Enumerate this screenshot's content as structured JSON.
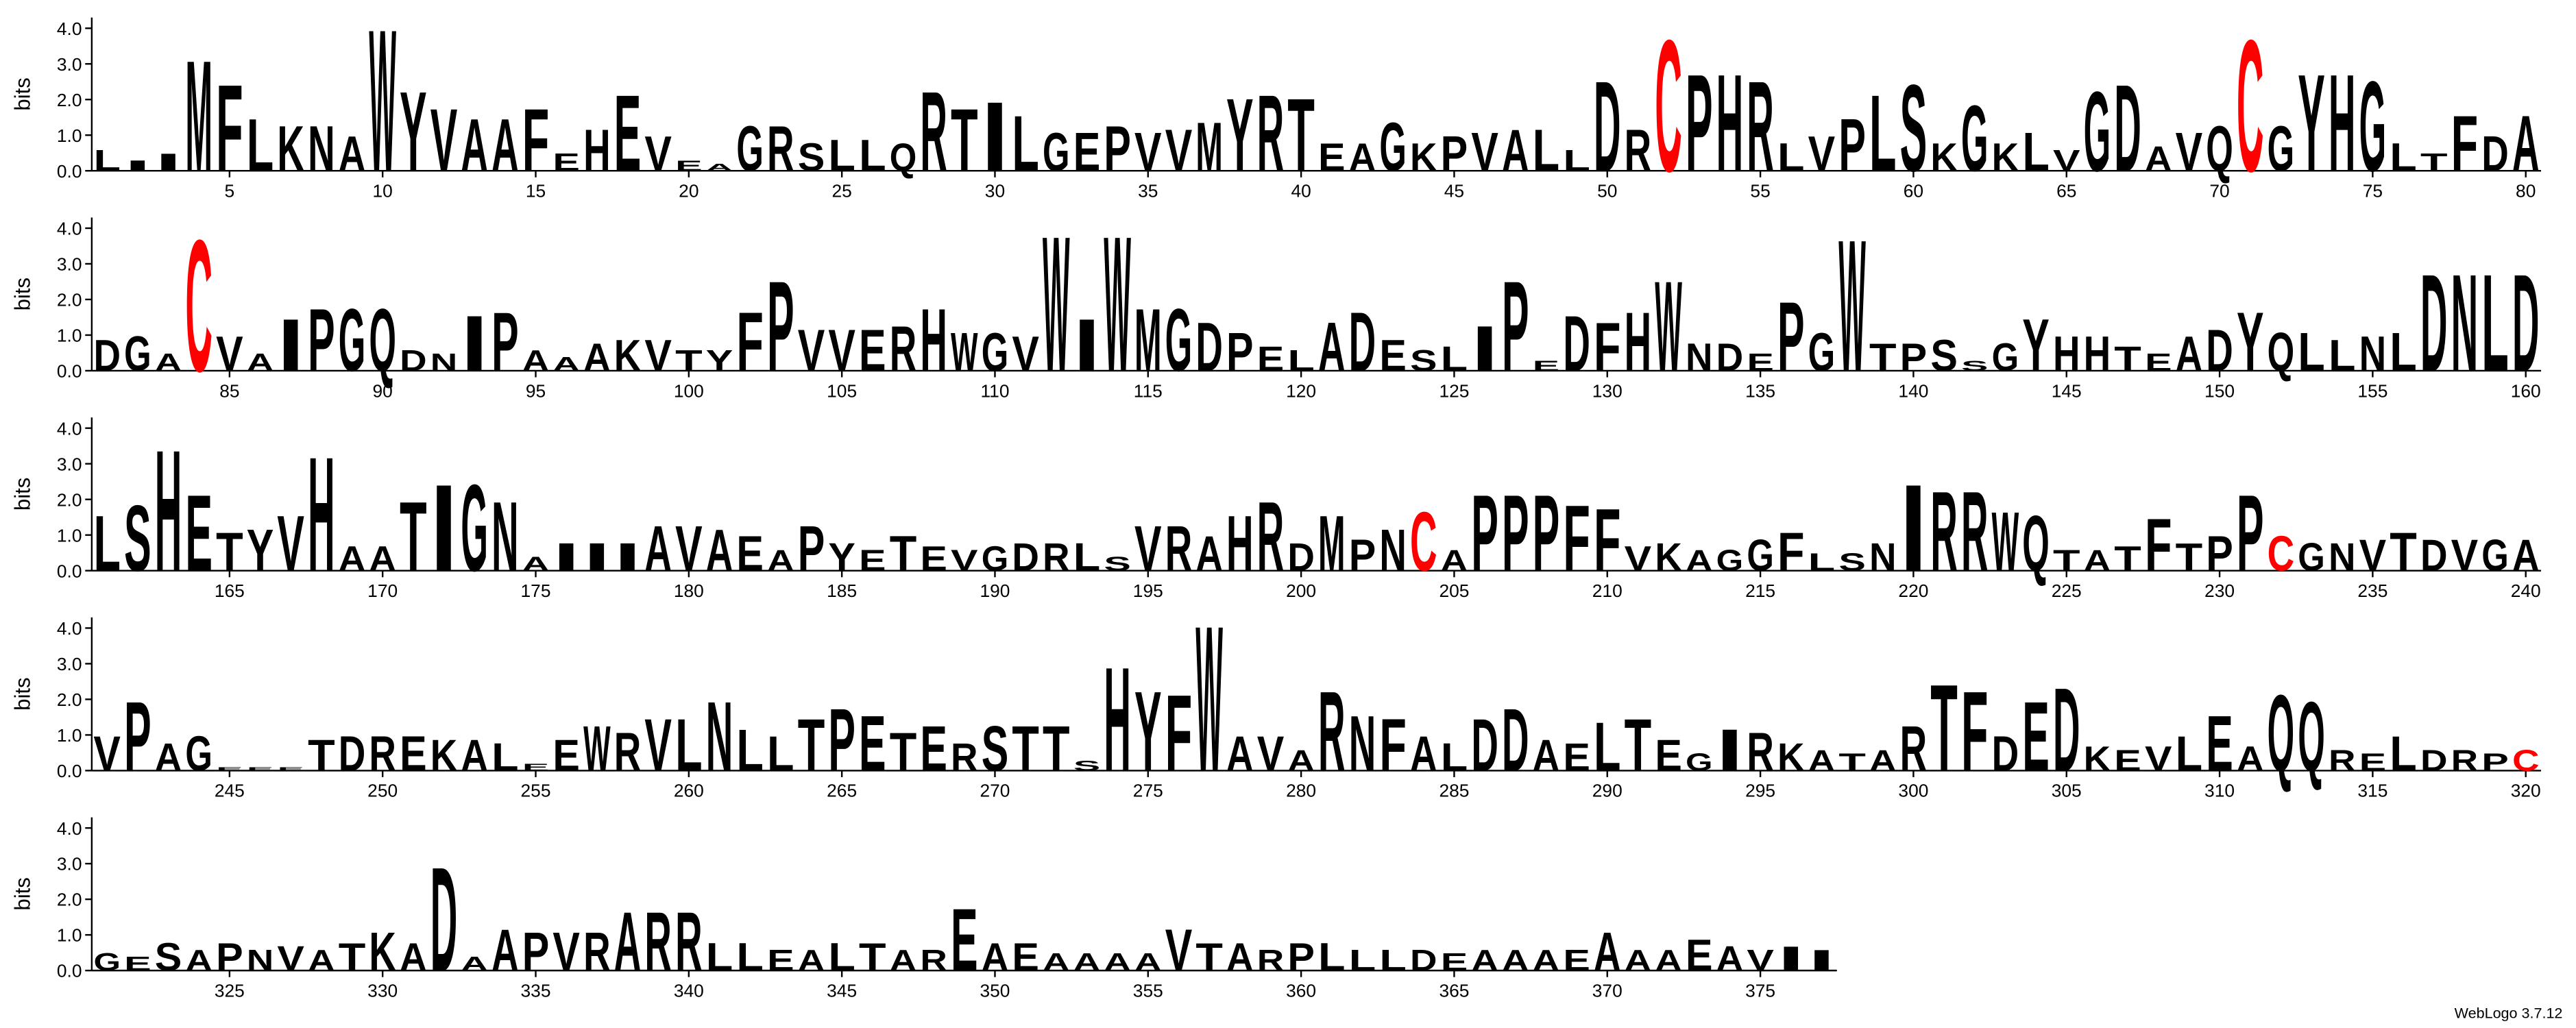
{
  "chart_data": [
    {
      "type": "logo",
      "ylabel": "bits",
      "ylim": [
        0,
        4.3
      ],
      "yticks": [
        {
          "value": 0,
          "label": "0.0"
        },
        {
          "value": 1,
          "label": "1.0"
        },
        {
          "value": 2,
          "label": "2.0"
        },
        {
          "value": 3,
          "label": "3.0"
        },
        {
          "value": 4,
          "label": "4.0"
        }
      ],
      "xlim": [
        0.5,
        80.5
      ],
      "xticks": [
        5,
        10,
        15,
        20,
        25,
        30,
        35,
        40,
        45,
        50,
        55,
        60,
        65,
        70,
        75,
        80
      ],
      "color": "#000000",
      "letter_colors": {
        "C": "#ff0000"
      },
      "x": [
        1,
        2,
        3,
        4,
        5,
        6,
        7,
        8,
        9,
        10,
        11,
        12,
        13,
        14,
        15,
        16,
        17,
        18,
        19,
        20,
        21,
        22,
        23,
        24,
        25,
        26,
        27,
        28,
        29,
        30,
        31,
        32,
        33,
        34,
        35,
        36,
        37,
        38,
        39,
        40,
        41,
        42,
        43,
        44,
        45,
        46,
        47,
        48,
        49,
        50,
        51,
        52,
        53,
        54,
        55,
        56,
        57,
        58,
        59,
        60,
        61,
        62,
        63,
        64,
        65,
        66,
        67,
        68,
        69,
        70,
        71,
        72,
        73,
        74,
        75,
        76,
        77,
        78,
        79,
        80
      ],
      "letters": [
        "L",
        "I",
        "I",
        "M",
        "F",
        "L",
        "K",
        "N",
        "A",
        "W",
        "Y",
        "V",
        "A",
        "A",
        "F",
        "E",
        "H",
        "E",
        "V",
        "E",
        "A",
        "G",
        "R",
        "S",
        "L",
        "L",
        "Q",
        "R",
        "T",
        "I",
        "L",
        "G",
        "E",
        "P",
        "V",
        "V",
        "M",
        "Y",
        "R",
        "T",
        "E",
        "A",
        "G",
        "K",
        "P",
        "V",
        "A",
        "L",
        "L",
        "D",
        "R",
        "C",
        "P",
        "H",
        "R",
        "L",
        "V",
        "P",
        "L",
        "S",
        "K",
        "G",
        "K",
        "L",
        "V",
        "G",
        "D",
        "A",
        "V",
        "Q",
        "C",
        "G",
        "Y",
        "H",
        "G",
        "L",
        "T",
        "F",
        "D",
        "A"
      ],
      "values": [
        0.6,
        0.3,
        0.5,
        3.2,
        2.5,
        1.5,
        1.3,
        1.3,
        1.0,
        4.1,
        2.3,
        1.8,
        1.5,
        1.5,
        1.8,
        0.5,
        1.2,
        2.2,
        1.0,
        0.3,
        0.2,
        1.3,
        1.3,
        0.8,
        0.9,
        0.9,
        0.8,
        2.3,
        1.8,
        2.0,
        1.6,
        1.1,
        1.1,
        1.3,
        1.1,
        1.2,
        1.4,
        2.1,
        2.2,
        2.1,
        0.8,
        0.8,
        1.4,
        0.8,
        1.0,
        1.1,
        1.2,
        1.2,
        0.6,
        2.6,
        1.2,
        3.8,
        2.8,
        2.8,
        2.6,
        0.8,
        1.0,
        1.5,
        2.2,
        2.5,
        0.8,
        1.9,
        0.8,
        1.1,
        0.6,
        2.3,
        2.5,
        0.7,
        1.1,
        1.3,
        3.8,
        1.3,
        2.8,
        2.8,
        2.6,
        0.8,
        0.5,
        1.6,
        1.0,
        1.6
      ]
    },
    {
      "type": "logo",
      "ylabel": "bits",
      "ylim": [
        0,
        4.3
      ],
      "yticks": [
        {
          "value": 0,
          "label": "0.0"
        },
        {
          "value": 1,
          "label": "1.0"
        },
        {
          "value": 2,
          "label": "2.0"
        },
        {
          "value": 3,
          "label": "3.0"
        },
        {
          "value": 4,
          "label": "4.0"
        }
      ],
      "xlim": [
        80.5,
        160.5
      ],
      "xticks": [
        85,
        90,
        95,
        100,
        105,
        110,
        115,
        120,
        125,
        130,
        135,
        140,
        145,
        150,
        155,
        160
      ],
      "color": "#000000",
      "letter_colors": {
        "C": "#ff0000"
      },
      "x": [
        81,
        82,
        83,
        84,
        85,
        86,
        87,
        88,
        89,
        90,
        91,
        92,
        93,
        94,
        95,
        96,
        97,
        98,
        99,
        100,
        101,
        102,
        103,
        104,
        105,
        106,
        107,
        108,
        109,
        110,
        111,
        112,
        113,
        114,
        115,
        116,
        117,
        118,
        119,
        120,
        121,
        122,
        123,
        124,
        125,
        126,
        127,
        128,
        129,
        130,
        131,
        132,
        133,
        134,
        135,
        136,
        137,
        138,
        139,
        140,
        141,
        142,
        143,
        144,
        145,
        146,
        147,
        148,
        149,
        150,
        151,
        152,
        153,
        154,
        155,
        156,
        157,
        158,
        159,
        160
      ],
      "letters": [
        "D",
        "G",
        "A",
        "C",
        "V",
        "A",
        "I",
        "P",
        "G",
        "Q",
        "D",
        "N",
        "I",
        "P",
        "A",
        "A",
        "A",
        "K",
        "V",
        "T",
        "Y",
        "F",
        "P",
        "V",
        "V",
        "E",
        "R",
        "H",
        "W",
        "G",
        "V",
        "W",
        "I",
        "W",
        "M",
        "G",
        "D",
        "P",
        "E",
        "L",
        "A",
        "D",
        "E",
        "S",
        "L",
        "I",
        "P",
        "E",
        "D",
        "F",
        "H",
        "W",
        "N",
        "D",
        "E",
        "P",
        "G",
        "W",
        "T",
        "P",
        "S",
        "S",
        "G",
        "Y",
        "H",
        "H",
        "T",
        "E",
        "A",
        "D",
        "Y",
        "Q",
        "L",
        "L",
        "N",
        "L",
        "D",
        "N",
        "L",
        "D"
      ],
      "values": [
        0.9,
        1.0,
        0.5,
        3.8,
        1.0,
        0.5,
        1.5,
        1.8,
        1.8,
        1.8,
        0.6,
        0.5,
        1.6,
        1.7,
        0.6,
        0.4,
        0.8,
        0.9,
        0.9,
        0.6,
        0.6,
        1.7,
        2.6,
        1.2,
        1.2,
        1.2,
        1.3,
        1.8,
        1.1,
        1.1,
        1.0,
        3.9,
        1.5,
        3.9,
        1.8,
        1.8,
        1.4,
        1.1,
        0.7,
        0.6,
        1.4,
        1.7,
        0.9,
        0.6,
        0.7,
        1.3,
        2.6,
        0.3,
        1.6,
        1.4,
        1.7,
        2.6,
        0.8,
        0.8,
        0.5,
        2.0,
        1.1,
        3.8,
        0.8,
        0.8,
        0.9,
        0.3,
        0.8,
        1.5,
        1.0,
        1.0,
        0.7,
        0.5,
        1.0,
        1.2,
        1.7,
        1.1,
        1.1,
        0.9,
        1.0,
        1.1,
        2.8,
        2.8,
        2.8,
        2.8
      ]
    },
    {
      "type": "logo",
      "ylabel": "bits",
      "ylim": [
        0,
        4.3
      ],
      "yticks": [
        {
          "value": 0,
          "label": "0.0"
        },
        {
          "value": 1,
          "label": "1.0"
        },
        {
          "value": 2,
          "label": "2.0"
        },
        {
          "value": 3,
          "label": "3.0"
        },
        {
          "value": 4,
          "label": "4.0"
        }
      ],
      "xlim": [
        160.5,
        240.5
      ],
      "xticks": [
        165,
        170,
        175,
        180,
        185,
        190,
        195,
        200,
        205,
        210,
        215,
        220,
        225,
        230,
        235,
        240
      ],
      "color": "#000000",
      "letter_colors": {
        "C": "#ff0000"
      },
      "x": [
        161,
        162,
        163,
        164,
        165,
        166,
        167,
        168,
        169,
        170,
        171,
        172,
        173,
        174,
        175,
        176,
        177,
        178,
        179,
        180,
        181,
        182,
        183,
        184,
        185,
        186,
        187,
        188,
        189,
        190,
        191,
        192,
        193,
        194,
        195,
        196,
        197,
        198,
        199,
        200,
        201,
        202,
        203,
        204,
        205,
        206,
        207,
        208,
        209,
        210,
        211,
        212,
        213,
        214,
        215,
        216,
        217,
        218,
        219,
        220,
        221,
        222,
        223,
        224,
        225,
        226,
        227,
        228,
        229,
        230,
        231,
        232,
        233,
        234,
        235,
        236,
        237,
        238,
        239,
        240
      ],
      "letters": [
        "L",
        "S",
        "H",
        "E",
        "T",
        "Y",
        "V",
        "H",
        "A",
        "A",
        "T",
        "I",
        "G",
        "N",
        "A",
        "I",
        "I",
        "I",
        "A",
        "V",
        "A",
        "E",
        "A",
        "P",
        "Y",
        "E",
        "T",
        "E",
        "V",
        "G",
        "D",
        "R",
        "L",
        "S",
        "V",
        "R",
        "A",
        "H",
        "R",
        "D",
        "M",
        "P",
        "N",
        "C",
        "A",
        "P",
        "P",
        "P",
        "F",
        "F",
        "V",
        "K",
        "A",
        "G",
        "G",
        "F",
        "L",
        "S",
        "N",
        "I",
        "R",
        "R",
        "W",
        "Q",
        "T",
        "A",
        "T",
        "F",
        "T",
        "P",
        "P",
        "C",
        "G",
        "N",
        "V",
        "T",
        "D",
        "V",
        "G",
        "A"
      ],
      "values": [
        1.6,
        1.9,
        3.5,
        2.2,
        1.1,
        1.2,
        1.6,
        3.3,
        0.7,
        0.7,
        2.0,
        2.5,
        2.5,
        2.0,
        0.4,
        0.8,
        0.8,
        0.8,
        1.3,
        1.3,
        1.2,
        1.0,
        0.6,
        1.3,
        0.8,
        0.6,
        1.0,
        0.7,
        0.6,
        0.7,
        0.8,
        0.8,
        0.8,
        0.4,
        1.3,
        1.3,
        1.0,
        1.6,
        2.0,
        0.8,
        1.6,
        0.9,
        1.2,
        1.7,
        0.6,
        2.2,
        2.2,
        2.2,
        1.9,
        1.8,
        0.7,
        0.8,
        0.6,
        0.6,
        0.9,
        1.1,
        0.5,
        0.5,
        0.8,
        2.5,
        2.3,
        2.3,
        1.7,
        1.6,
        0.6,
        0.6,
        0.7,
        1.5,
        0.8,
        1.0,
        2.2,
        1.0,
        0.8,
        0.8,
        0.9,
        1.1,
        0.9,
        0.9,
        0.9,
        0.9
      ]
    },
    {
      "type": "logo",
      "ylabel": "bits",
      "ylim": [
        0,
        4.3
      ],
      "yticks": [
        {
          "value": 0,
          "label": "0.0"
        },
        {
          "value": 1,
          "label": "1.0"
        },
        {
          "value": 2,
          "label": "2.0"
        },
        {
          "value": 3,
          "label": "3.0"
        },
        {
          "value": 4,
          "label": "4.0"
        }
      ],
      "xlim": [
        240.5,
        320.5
      ],
      "xticks": [
        245,
        250,
        255,
        260,
        265,
        270,
        275,
        280,
        285,
        290,
        295,
        300,
        305,
        310,
        315,
        320
      ],
      "color": "#000000",
      "letter_colors": {
        "C": "#ff0000"
      },
      "x": [
        241,
        242,
        243,
        244,
        245,
        246,
        247,
        248,
        249,
        250,
        251,
        252,
        253,
        254,
        255,
        256,
        257,
        258,
        259,
        260,
        261,
        262,
        263,
        264,
        265,
        266,
        267,
        268,
        269,
        270,
        271,
        272,
        273,
        274,
        275,
        276,
        277,
        278,
        279,
        280,
        281,
        282,
        283,
        284,
        285,
        286,
        287,
        288,
        289,
        290,
        291,
        292,
        293,
        294,
        295,
        296,
        297,
        298,
        299,
        300,
        301,
        302,
        303,
        304,
        305,
        306,
        307,
        308,
        309,
        310,
        311,
        312,
        313,
        314,
        315,
        316,
        317,
        318,
        319,
        320
      ],
      "letters": [
        "V",
        "P",
        "A",
        "G",
        "E",
        "E",
        "E",
        "T",
        "D",
        "R",
        "E",
        "K",
        "A",
        "L",
        "E",
        "E",
        "W",
        "R",
        "V",
        "L",
        "N",
        "L",
        "L",
        "T",
        "P",
        "E",
        "T",
        "E",
        "R",
        "S",
        "T",
        "T",
        "S",
        "H",
        "Y",
        "F",
        "W",
        "A",
        "V",
        "A",
        "R",
        "N",
        "F",
        "A",
        "L",
        "D",
        "D",
        "A",
        "E",
        "L",
        "T",
        "E",
        "G",
        "I",
        "R",
        "K",
        "A",
        "T",
        "A",
        "R",
        "T",
        "F",
        "D",
        "E",
        "D",
        "K",
        "E",
        "V",
        "L",
        "E",
        "A",
        "Q",
        "Q",
        "R",
        "E",
        "L",
        "D",
        "R",
        "P",
        "C"
      ],
      "values": [
        1.0,
        2.0,
        0.8,
        1.0,
        0.1,
        0.1,
        0.1,
        0.9,
        1.0,
        1.0,
        1.0,
        0.9,
        0.9,
        0.8,
        0.2,
        0.9,
        1.3,
        1.1,
        1.5,
        1.5,
        2.0,
        1.2,
        1.0,
        1.5,
        1.8,
        1.6,
        1.1,
        1.3,
        0.8,
        1.3,
        1.3,
        1.3,
        0.3,
        3.0,
        2.3,
        2.2,
        4.2,
        1.0,
        1.0,
        0.6,
        2.3,
        1.6,
        1.5,
        1.0,
        0.8,
        1.5,
        1.8,
        0.9,
        0.8,
        1.4,
        1.5,
        0.9,
        0.5,
        1.2,
        1.1,
        0.8,
        0.6,
        0.5,
        0.6,
        1.3,
        2.5,
        2.3,
        1.0,
        2.0,
        2.4,
        0.7,
        0.6,
        0.7,
        1.0,
        1.6,
        0.7,
        2.2,
        2.0,
        0.6,
        0.5,
        1.0,
        0.6,
        0.6,
        0.5,
        0.6
      ]
    },
    {
      "type": "logo",
      "ylabel": "bits",
      "ylim": [
        0,
        4.3
      ],
      "yticks": [
        {
          "value": 0,
          "label": "0.0"
        },
        {
          "value": 1,
          "label": "1.0"
        },
        {
          "value": 2,
          "label": "2.0"
        },
        {
          "value": 3,
          "label": "3.0"
        },
        {
          "value": 4,
          "label": "4.0"
        }
      ],
      "xlim": [
        320.5,
        377.5
      ],
      "xticks": [
        325,
        330,
        335,
        340,
        345,
        350,
        355,
        360,
        365,
        370,
        375
      ],
      "color": "#000000",
      "letter_colors": {
        "C": "#ff0000"
      },
      "x": [
        321,
        322,
        323,
        324,
        325,
        326,
        327,
        328,
        329,
        330,
        331,
        332,
        333,
        334,
        335,
        336,
        337,
        338,
        339,
        340,
        341,
        342,
        343,
        344,
        345,
        346,
        347,
        348,
        349,
        350,
        351,
        352,
        353,
        354,
        355,
        356,
        357,
        358,
        359,
        360,
        361,
        362,
        363,
        364,
        365,
        366,
        367,
        368,
        369,
        370,
        371,
        372,
        373,
        374,
        375,
        376,
        377
      ],
      "letters": [
        "G",
        "E",
        "S",
        "A",
        "P",
        "N",
        "V",
        "A",
        "T",
        "K",
        "A",
        "D",
        "A",
        "A",
        "P",
        "V",
        "R",
        "A",
        "R",
        "R",
        "L",
        "L",
        "E",
        "A",
        "L",
        "T",
        "A",
        "R",
        "E",
        "A",
        "E",
        "A",
        "A",
        "A",
        "A",
        "V",
        "T",
        "A",
        "R",
        "P",
        "L",
        "L",
        "L",
        "D",
        "E",
        "A",
        "A",
        "A",
        "E",
        "A",
        "A",
        "A",
        "E",
        "A",
        "V",
        "I",
        "I"
      ],
      "values": [
        0.5,
        0.4,
        0.8,
        0.6,
        0.8,
        0.6,
        0.7,
        0.6,
        0.8,
        1.1,
        0.8,
        3.0,
        0.4,
        1.2,
        1.1,
        1.1,
        1.1,
        1.7,
        1.7,
        1.7,
        0.8,
        0.8,
        0.6,
        0.6,
        0.8,
        0.8,
        0.6,
        0.6,
        1.8,
        0.8,
        0.8,
        0.5,
        0.5,
        0.5,
        0.5,
        1.2,
        0.8,
        0.8,
        0.6,
        0.8,
        0.8,
        0.6,
        0.6,
        0.6,
        0.5,
        0.6,
        0.6,
        0.6,
        0.6,
        1.1,
        0.6,
        0.6,
        0.9,
        0.7,
        0.6,
        0.7,
        0.6
      ]
    }
  ],
  "footer": "WebLogo 3.7.12"
}
